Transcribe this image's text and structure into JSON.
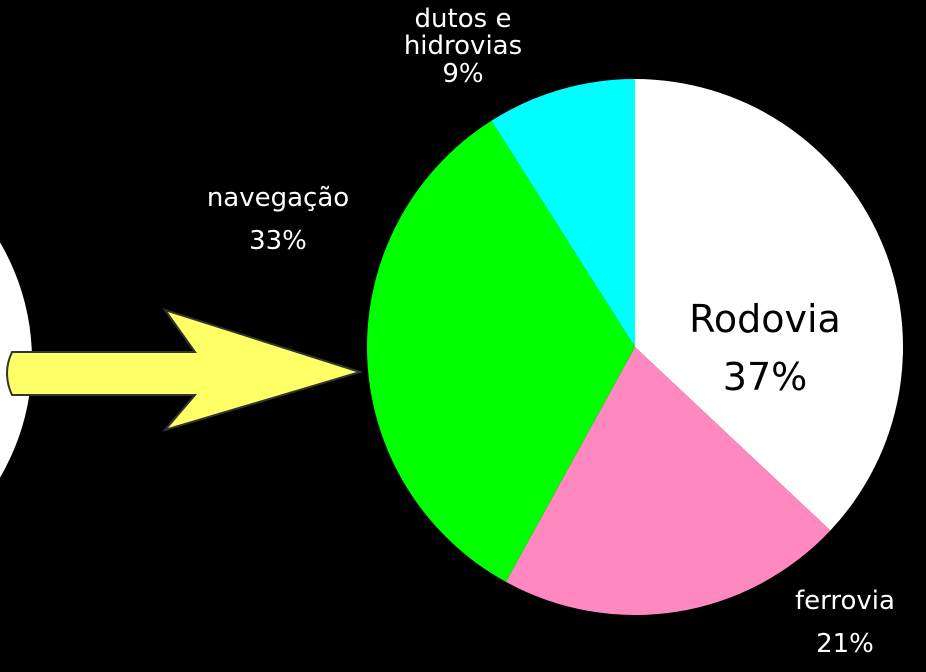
{
  "chart_data": {
    "type": "pie",
    "categories": [
      "Rodovia",
      "ferrovia",
      "navegação",
      "dutos e hidrovias"
    ],
    "values": [
      37,
      21,
      33,
      9
    ],
    "value_labels": [
      "37%",
      "21%",
      "33%",
      "9%"
    ],
    "colors": [
      "#ffffff",
      "#ff88c0",
      "#00ff00",
      "#00ffff"
    ]
  }
}
